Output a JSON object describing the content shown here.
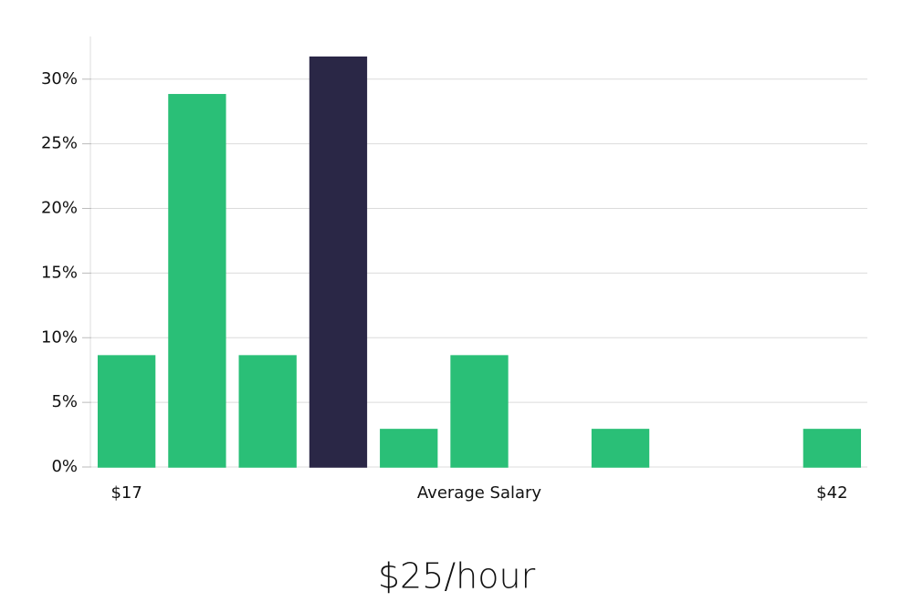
{
  "chart_data": {
    "type": "bar",
    "categories": [
      "$17",
      null,
      null,
      null,
      null,
      null,
      null,
      null,
      null,
      null,
      "$42"
    ],
    "values": [
      8.6,
      28.8,
      8.6,
      31.7,
      2.9,
      8.6,
      0,
      2.9,
      0,
      0,
      2.9
    ],
    "colors": [
      "#2abf77",
      "#2abf77",
      "#2abf77",
      "#2a2746",
      "#2abf77",
      "#2abf77",
      "#2abf77",
      "#2abf77",
      "#2abf77",
      "#2abf77",
      "#2abf77"
    ],
    "xlabel": "Average Salary",
    "annotation": "$25/hour",
    "ylim": [
      0,
      33.3
    ],
    "yticks": [
      {
        "value": 0,
        "label": "0%"
      },
      {
        "value": 5,
        "label": "5%"
      },
      {
        "value": 10,
        "label": "10%"
      },
      {
        "value": 15,
        "label": "15%"
      },
      {
        "value": 20,
        "label": "20%"
      },
      {
        "value": 25,
        "label": "25%"
      },
      {
        "value": 30,
        "label": "30%"
      }
    ],
    "grid": true
  }
}
